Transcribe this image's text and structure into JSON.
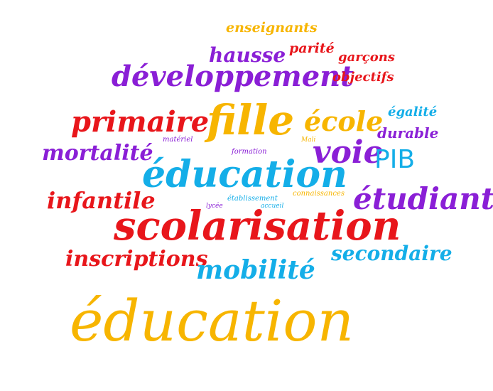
{
  "colors": {
    "yellow": "#f7b500",
    "red": "#e8161b",
    "purple": "#8a1fd6",
    "blue": "#14aee8",
    "background": "#ffffff"
  },
  "words": {
    "enseignants": "enseignants",
    "parite": "parité",
    "hausse": "hausse",
    "garcons": "garçons",
    "developpement": "développement",
    "objectifs": "objectifs",
    "primaire": "primaire",
    "fille": "fille",
    "ecole": "école",
    "egalite": "égalité",
    "durable": "durable",
    "materiel": "matériel",
    "mali": "Mali",
    "mortalite": "mortalité",
    "formation": "formation",
    "voie": "voie",
    "pib": "PIB",
    "education_mid": "éducation",
    "infantile": "infantile",
    "etudiant": "étudiant",
    "connaissances": "connaissances",
    "etablissement": "établissement",
    "lycee": "lycée",
    "accueil": "accueil",
    "scolarisation": "scolarisation",
    "inscriptions": "inscriptions",
    "secondaire": "secondaire",
    "mobilite": "mobilité",
    "education_large": "éducation"
  }
}
